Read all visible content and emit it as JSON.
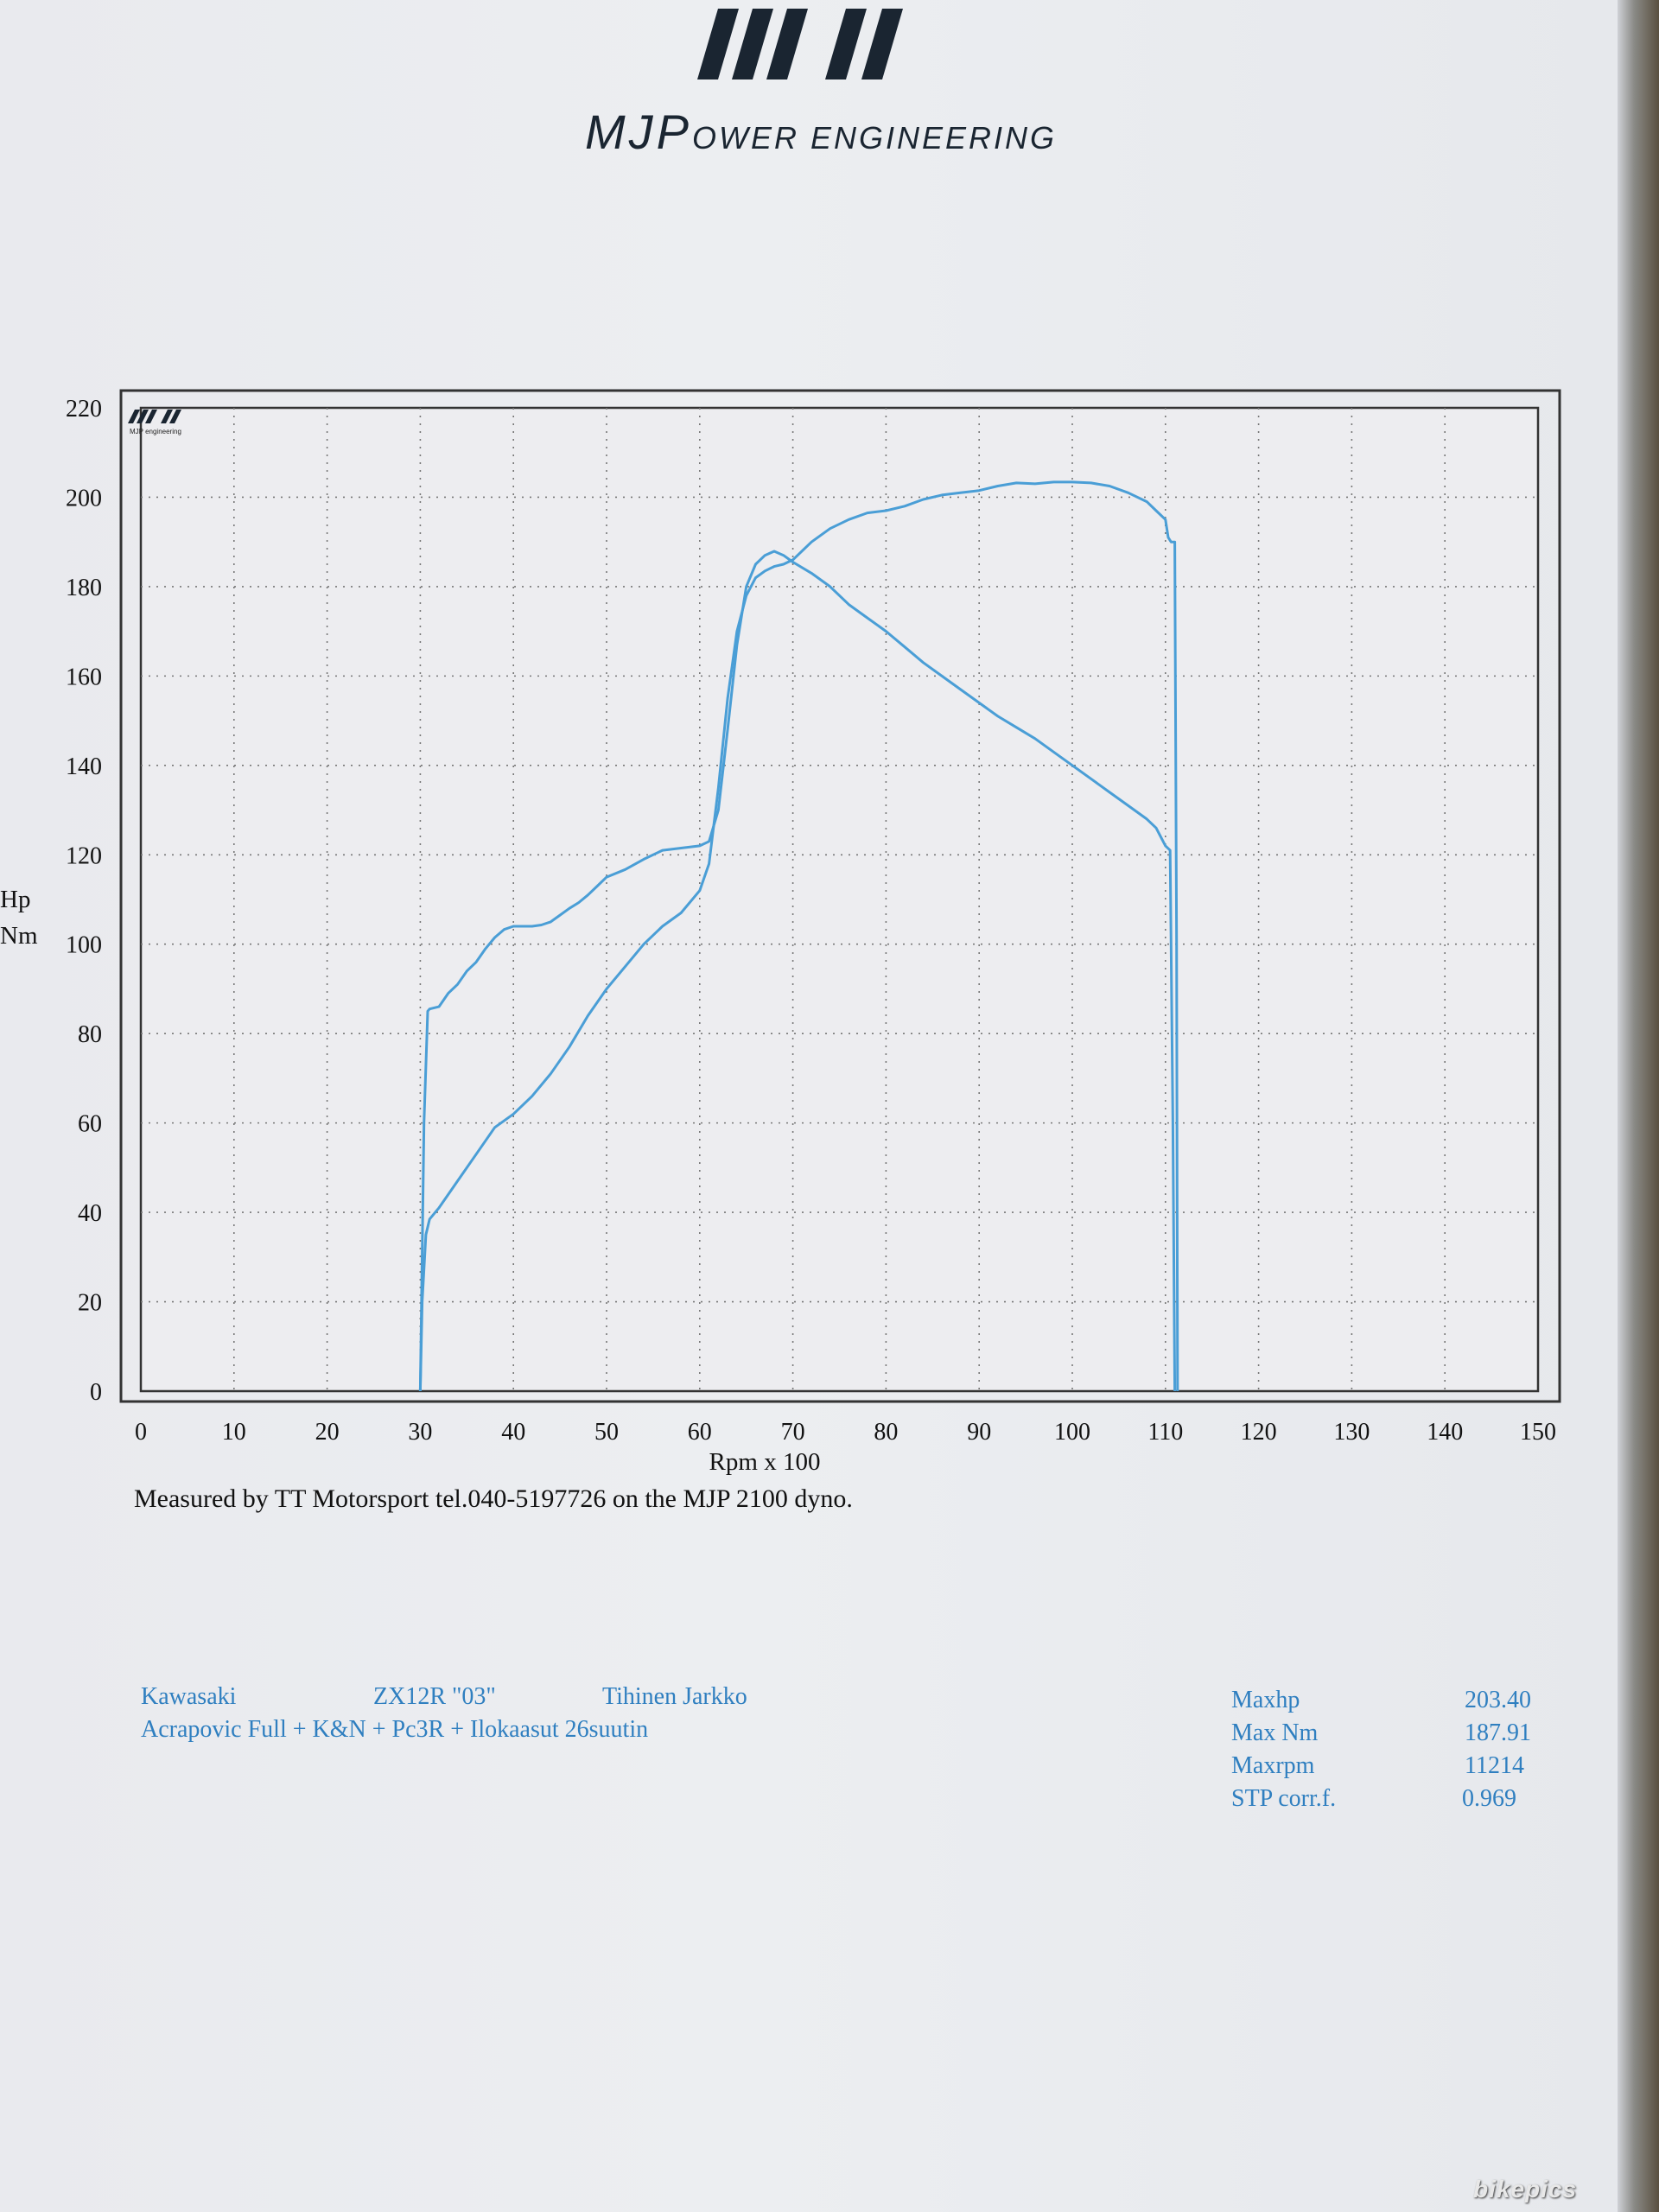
{
  "brand": {
    "logo_main": "MJP",
    "logo_suffix": "OWER ENGINEERING",
    "inner_logo_text": "MJP engineering"
  },
  "chart_data": {
    "type": "line",
    "title": "",
    "xlabel": "Rpm x 100",
    "ylabel_lines": [
      "Hp",
      "Nm"
    ],
    "xlim": [
      0,
      150
    ],
    "ylim": [
      0,
      220
    ],
    "x_ticks": [
      0,
      10,
      20,
      30,
      40,
      50,
      60,
      70,
      80,
      90,
      100,
      110,
      120,
      130,
      140,
      150
    ],
    "y_ticks": [
      0,
      20,
      40,
      60,
      80,
      100,
      120,
      140,
      160,
      180,
      200,
      220
    ],
    "grid": true,
    "line_color": "#4a9ed6",
    "series": [
      {
        "x": [
          30,
          30.2,
          30.6,
          31,
          32,
          34,
          36,
          38,
          40,
          42,
          44,
          46,
          48,
          50,
          52,
          54,
          56,
          58,
          60,
          61,
          62,
          63,
          64,
          65,
          66,
          67,
          67.5,
          68,
          69,
          70,
          72,
          74,
          76,
          78,
          80,
          82,
          84,
          86,
          88,
          90,
          92,
          94,
          96,
          98,
          100,
          102,
          104,
          106,
          108,
          109,
          110,
          110.3,
          110.6,
          111,
          111.2,
          111.3
        ],
        "y": [
          0,
          20,
          35,
          38.5,
          41,
          47,
          53,
          59,
          62,
          66,
          71,
          77,
          84,
          90,
          95,
          100,
          104,
          107,
          112,
          118,
          135,
          155,
          170,
          178,
          182,
          183.5,
          184,
          184.5,
          185,
          186,
          190,
          193,
          195,
          196.5,
          197,
          198,
          199.5,
          200.5,
          201,
          201.5,
          202.5,
          203.2,
          203,
          203.4,
          203.4,
          203.2,
          202.5,
          201,
          199,
          197,
          195,
          191,
          190,
          190,
          100,
          0
        ]
      },
      {
        "x": [
          30,
          30.4,
          30.8,
          31,
          32,
          33,
          34,
          35,
          36,
          37,
          38,
          39,
          40,
          41,
          42,
          43,
          44,
          45,
          46,
          47,
          48,
          49,
          50,
          52,
          54,
          56,
          58,
          60,
          61,
          62,
          63,
          64,
          65,
          66,
          67,
          68,
          69,
          70,
          72,
          74,
          76,
          78,
          80,
          82,
          84,
          86,
          88,
          90,
          92,
          94,
          96,
          98,
          100,
          102,
          104,
          106,
          108,
          109,
          109.5,
          110,
          110.5,
          110.8,
          111
        ],
        "y": [
          0,
          60,
          85,
          85.5,
          86,
          89,
          91,
          94,
          96,
          99,
          101.5,
          103.3,
          104,
          104,
          104,
          104.3,
          105,
          106.5,
          108,
          109.3,
          111,
          113,
          115,
          116.7,
          119,
          121,
          121.5,
          122,
          123,
          130,
          148,
          167,
          180,
          185,
          187,
          187.9,
          187,
          185.5,
          183,
          180,
          176,
          173,
          170,
          166.5,
          163,
          160,
          157,
          154,
          151,
          148.5,
          146,
          143,
          140,
          137,
          134,
          131,
          128,
          126,
          124,
          122,
          121,
          60,
          0
        ]
      }
    ]
  },
  "measured_by": "Measured by TT Motorsport tel.040-5197726 on the MJP 2100 dyno.",
  "vehicle": {
    "make": "Kawasaki",
    "model": "ZX12R \"03\"",
    "owner": "Tihinen Jarkko",
    "mods": "Acrapovic Full + K&N + Pc3R + Ilokaasut 26suutin"
  },
  "results": {
    "maxhp_label": "Maxhp",
    "maxhp_value": "203.40",
    "maxnm_label": "Max Nm",
    "maxnm_value": "187.91",
    "maxrpm_label": "Maxrpm",
    "maxrpm_value": "11214",
    "stp_label": "STP corr.f.",
    "stp_value": "0.969"
  },
  "colors": {
    "accent_blue": "#2f7fc0",
    "logo_dark": "#1a2531"
  },
  "watermark": "bikepics"
}
